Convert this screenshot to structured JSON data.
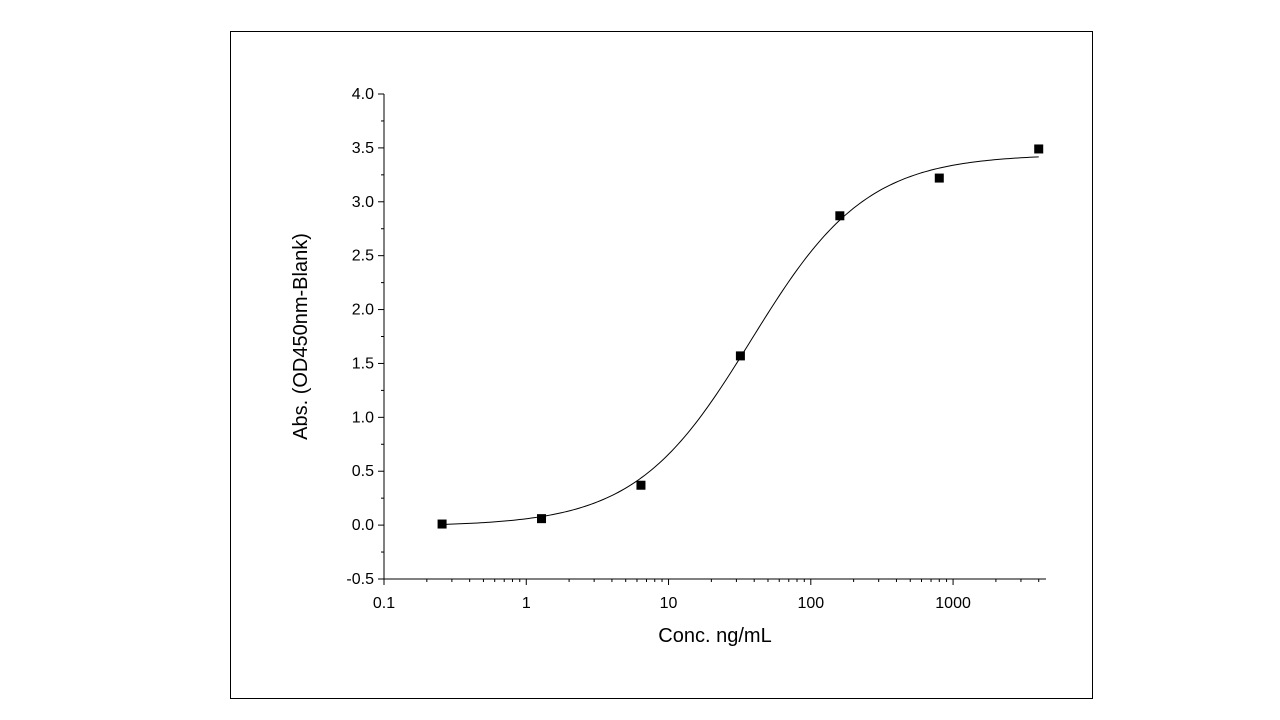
{
  "chart_data": {
    "type": "scatter",
    "title": "",
    "xlabel": "Conc. ng/mL",
    "ylabel": "Abs. (OD450nm-Blank)",
    "xscale": "log",
    "xlim": [
      0.1,
      4500
    ],
    "ylim": [
      -0.5,
      4.0
    ],
    "x_ticks": [
      "0.1",
      "1",
      "10",
      "100",
      "1000"
    ],
    "y_ticks": [
      "-0.5",
      "0.0",
      "0.5",
      "1.0",
      "1.5",
      "2.0",
      "2.5",
      "3.0",
      "3.5",
      "4.0"
    ],
    "grid": false,
    "series": [
      {
        "x": [
          0.256,
          1.28,
          6.4,
          32,
          160,
          800,
          4000
        ],
        "y": [
          0.01,
          0.06,
          0.37,
          1.57,
          2.87,
          3.22,
          3.49
        ]
      }
    ],
    "fit_curve": {
      "type": "4PL",
      "bottom": -0.01,
      "top": 3.44,
      "ec50": 38,
      "hill": 1.07
    },
    "colors": {
      "marker": "#000000",
      "line": "#000000"
    }
  }
}
